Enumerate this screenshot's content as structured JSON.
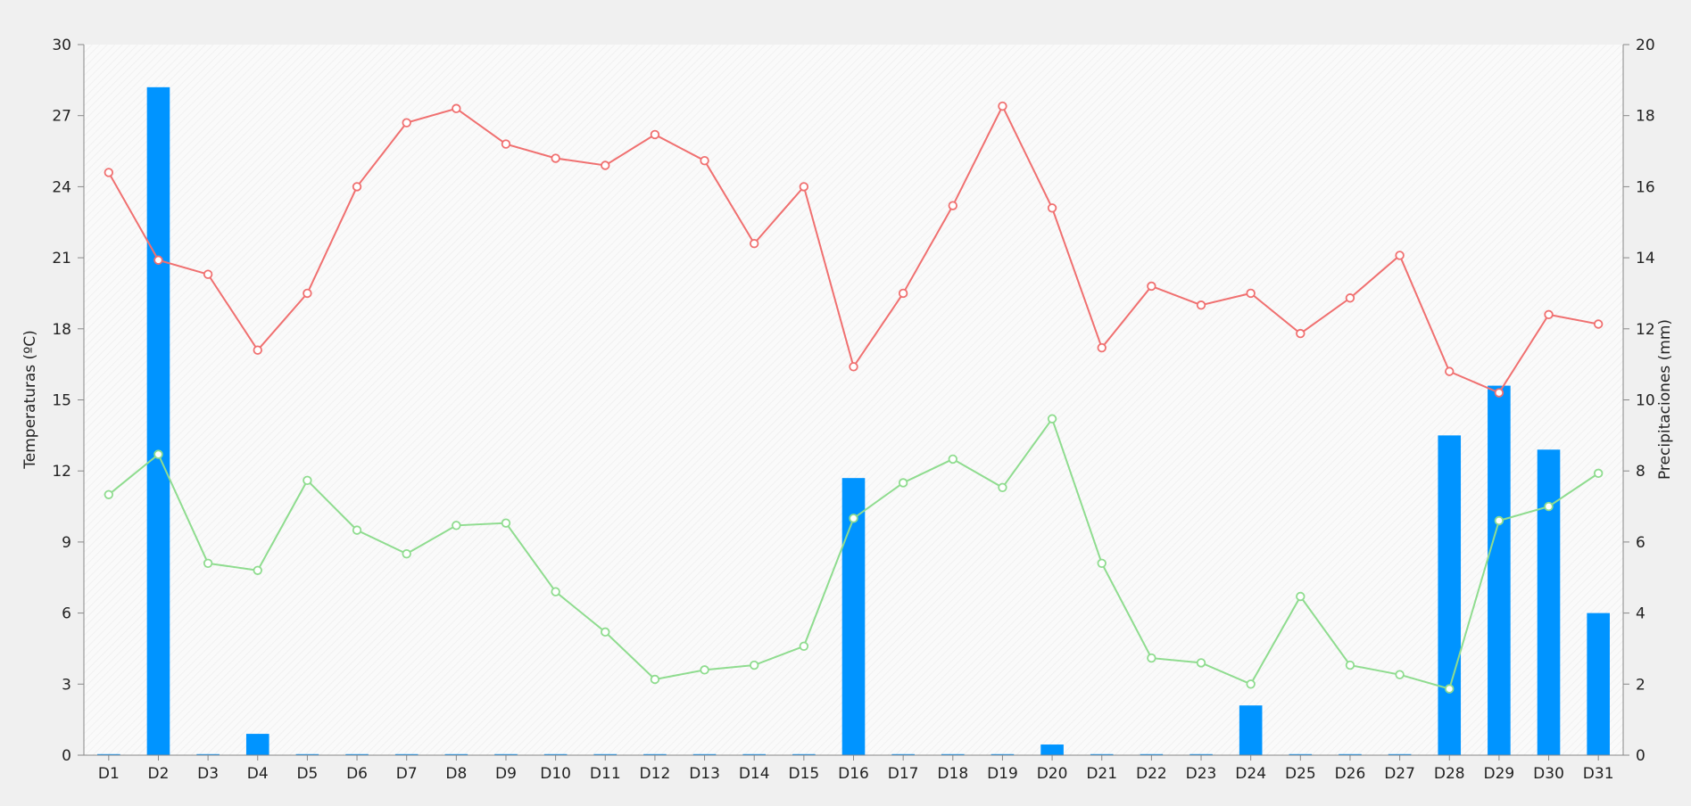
{
  "chart_data": {
    "type": "bar+line",
    "categories": [
      "D1",
      "D2",
      "D3",
      "D4",
      "D5",
      "D6",
      "D7",
      "D8",
      "D9",
      "D10",
      "D11",
      "D12",
      "D13",
      "D14",
      "D15",
      "D16",
      "D17",
      "D18",
      "D19",
      "D20",
      "D21",
      "D22",
      "D23",
      "D24",
      "D25",
      "D26",
      "D27",
      "D28",
      "D29",
      "D30",
      "D31"
    ],
    "ylabel_left": "Temperaturas (ºC)",
    "ylabel_right": "Precipitaciones (mm)",
    "ylim_left": [
      0,
      30
    ],
    "ylim_right": [
      0,
      20
    ],
    "yticks_left": [
      0,
      3,
      6,
      9,
      12,
      15,
      18,
      21,
      24,
      27,
      30
    ],
    "yticks_right": [
      0,
      2,
      4,
      6,
      8,
      10,
      12,
      14,
      16,
      18,
      20
    ],
    "grid": false,
    "colors": {
      "bars": "#0094ff",
      "max_temp": "#f07070",
      "min_temp": "#8fdc8f",
      "plot_background": "#fafafa",
      "page_background": "#f0f0f0"
    },
    "series": [
      {
        "kind": "bar",
        "axis": "right",
        "values": [
          0,
          18.8,
          0,
          0.6,
          0,
          0,
          0,
          0,
          0,
          0,
          0,
          0,
          0,
          0,
          0,
          7.8,
          0,
          0,
          0,
          0.3,
          0,
          0,
          0,
          1.4,
          0,
          0,
          0,
          9.0,
          10.4,
          8.6,
          4.0
        ]
      },
      {
        "kind": "line",
        "axis": "left",
        "values": [
          24.6,
          20.9,
          20.3,
          17.1,
          19.5,
          24.0,
          26.7,
          27.3,
          25.8,
          25.2,
          24.9,
          26.2,
          25.1,
          21.6,
          24.0,
          16.4,
          19.5,
          23.2,
          27.4,
          23.1,
          17.2,
          19.8,
          19.0,
          19.5,
          17.8,
          19.3,
          21.1,
          16.2,
          15.3,
          18.6,
          18.2
        ]
      },
      {
        "kind": "line",
        "axis": "left",
        "values": [
          11.0,
          12.7,
          8.1,
          7.8,
          11.6,
          9.5,
          8.5,
          9.7,
          9.8,
          6.9,
          5.2,
          3.2,
          3.6,
          3.8,
          4.6,
          10.0,
          11.5,
          12.5,
          11.3,
          14.2,
          8.1,
          4.1,
          3.9,
          3.0,
          6.7,
          3.8,
          3.4,
          2.8,
          9.9,
          10.5,
          11.9
        ]
      }
    ]
  }
}
